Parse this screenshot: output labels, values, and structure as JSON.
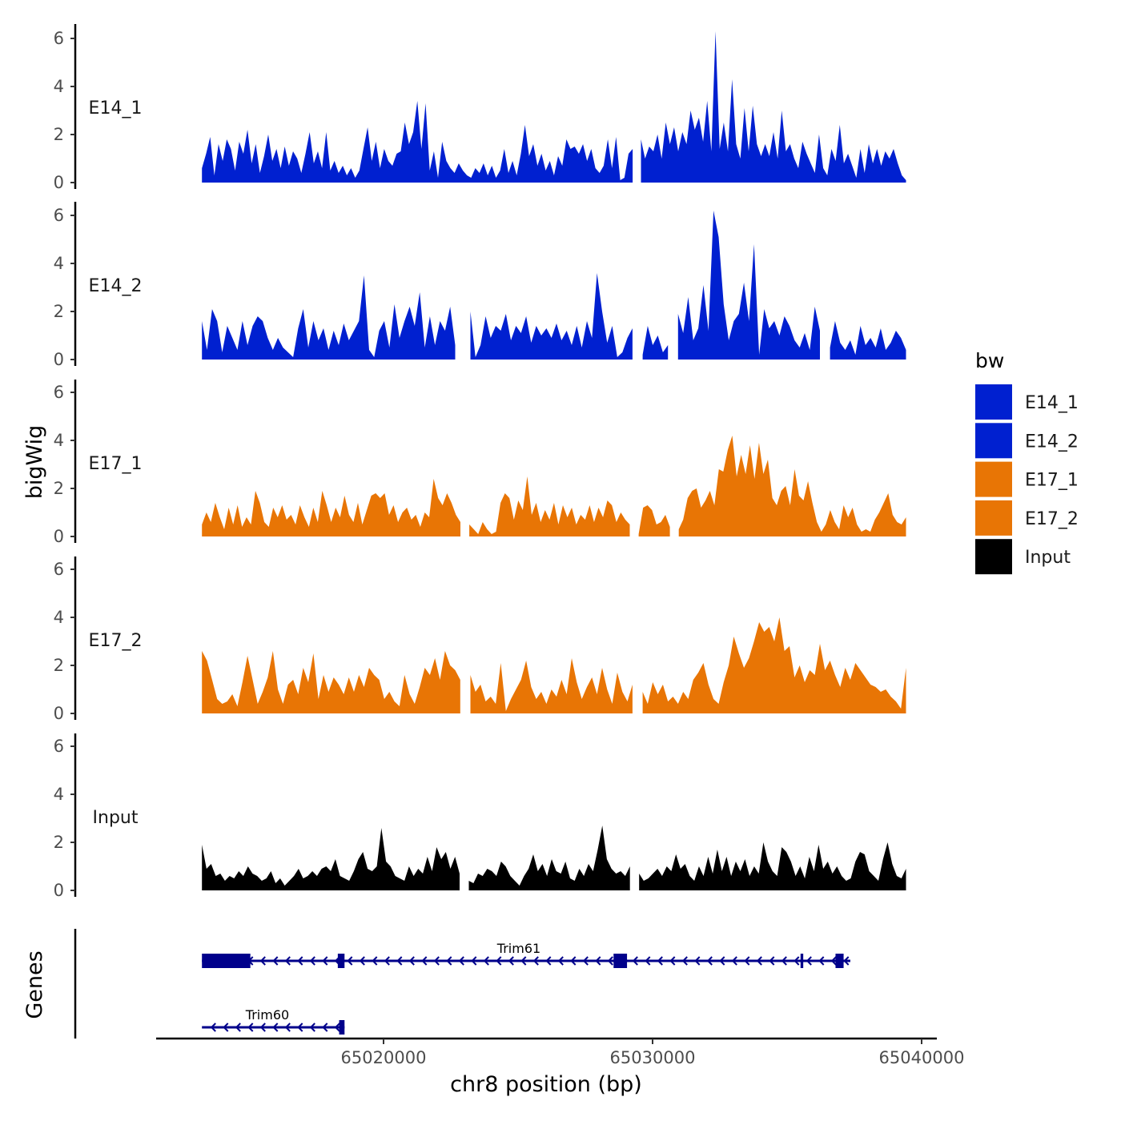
{
  "chart_data": {
    "type": "area",
    "chromosome": "chr8",
    "xlabel": "chr8 position (bp)",
    "ylabel": "bigWig",
    "genes_label": "Genes",
    "xlim": [
      65011500,
      65040500
    ],
    "ylim": [
      0,
      6.5
    ],
    "x_ticks": [
      65020000,
      65030000,
      65040000
    ],
    "x_tick_labels": [
      "65020000",
      "65030000",
      "65040000"
    ],
    "y_ticks": [
      0,
      2,
      4,
      6
    ],
    "y_tick_labels": [
      "0",
      "2",
      "4",
      "6"
    ],
    "legend": {
      "title": "bw",
      "position": "right",
      "entries": [
        {
          "label": "E14_1",
          "color": "#0020d0"
        },
        {
          "label": "E14_2",
          "color": "#0020d0"
        },
        {
          "label": "E17_1",
          "color": "#e87505"
        },
        {
          "label": "E17_2",
          "color": "#e87505"
        },
        {
          "label": "Input",
          "color": "#000000"
        }
      ]
    },
    "series": [
      {
        "name": "E14_1",
        "label": "E14_1",
        "color": "#0020d0",
        "x_start": 65013250,
        "x_end": 65039420,
        "gaps": [
          [
            65029300,
            65029450
          ]
        ],
        "values": [
          0.6,
          1.2,
          1.9,
          0.3,
          1.6,
          0.9,
          1.8,
          1.4,
          0.5,
          1.7,
          1.2,
          2.2,
          0.8,
          1.6,
          0.4,
          1.1,
          2.0,
          0.9,
          1.4,
          0.6,
          1.5,
          0.7,
          1.3,
          1.0,
          0.4,
          1.2,
          2.1,
          0.8,
          1.3,
          0.6,
          2.1,
          0.5,
          0.9,
          0.4,
          0.7,
          0.3,
          0.6,
          0.2,
          0.5,
          1.4,
          2.3,
          0.9,
          1.7,
          0.6,
          1.4,
          0.9,
          0.7,
          1.2,
          1.3,
          2.5,
          1.6,
          2.1,
          3.4,
          1.4,
          3.3,
          0.5,
          1.3,
          0.2,
          1.7,
          0.9,
          0.6,
          0.4,
          0.8,
          0.5,
          0.3,
          0.2,
          0.6,
          0.4,
          0.8,
          0.3,
          0.7,
          0.2,
          0.5,
          1.4,
          0.4,
          0.9,
          0.3,
          1.2,
          2.4,
          1.1,
          1.6,
          0.7,
          1.2,
          0.5,
          0.9,
          0.3,
          1.1,
          0.7,
          1.8,
          1.4,
          1.5,
          1.2,
          1.6,
          0.9,
          1.4,
          0.6,
          0.4,
          0.7,
          1.8,
          0.6,
          1.9,
          0.1,
          0.2,
          1.2,
          1.4,
          0.8,
          1.8,
          1.0,
          1.5,
          1.3,
          2.0,
          1.0,
          2.5,
          1.6,
          2.3,
          1.3,
          2.1,
          1.6,
          3.0,
          2.2,
          2.7,
          1.7,
          3.4,
          1.3,
          6.3,
          1.4,
          2.5,
          1.3,
          4.3,
          1.6,
          1.0,
          3.1,
          1.3,
          3.2,
          1.6,
          1.1,
          1.6,
          1.1,
          2.1,
          1.0,
          3.0,
          1.3,
          1.6,
          1.0,
          0.6,
          1.7,
          1.2,
          0.8,
          0.4,
          2.0,
          0.6,
          0.3,
          1.4,
          0.9,
          2.4,
          0.8,
          1.2,
          0.7,
          0.2,
          1.4,
          0.4,
          1.6,
          0.8,
          1.4,
          0.7,
          1.3,
          1.0,
          1.4,
          0.8,
          0.3,
          0.1
        ]
      },
      {
        "name": "E14_2",
        "label": "E14_2",
        "color": "#0020d0",
        "x_start": 65013250,
        "x_end": 65039420,
        "gaps": [
          [
            65022750,
            65023050
          ],
          [
            65029300,
            65029450
          ],
          [
            65030700,
            65030850
          ],
          [
            65036250,
            65036450
          ]
        ],
        "values": [
          1.6,
          0.4,
          2.1,
          1.6,
          0.3,
          1.4,
          0.9,
          0.4,
          1.6,
          0.6,
          1.4,
          1.8,
          1.6,
          0.9,
          0.4,
          0.9,
          0.5,
          0.3,
          0.1,
          1.3,
          2.1,
          0.5,
          1.6,
          0.8,
          1.3,
          0.4,
          1.2,
          0.6,
          1.5,
          0.8,
          1.2,
          1.6,
          3.5,
          0.4,
          0.1,
          1.2,
          1.6,
          0.5,
          2.3,
          0.9,
          1.6,
          2.2,
          1.4,
          2.8,
          0.5,
          1.8,
          0.6,
          1.6,
          1.2,
          2.2,
          0.6,
          1.3,
          0.8,
          2.0,
          0.1,
          0.6,
          1.8,
          0.9,
          1.4,
          1.2,
          1.9,
          0.8,
          1.4,
          1.1,
          1.8,
          0.7,
          1.4,
          1.0,
          1.3,
          0.9,
          1.5,
          0.8,
          1.2,
          0.6,
          1.4,
          0.5,
          1.6,
          0.9,
          3.6,
          2.0,
          0.7,
          1.4,
          0.1,
          0.3,
          0.9,
          1.3,
          0.5,
          0.2,
          1.4,
          0.6,
          1.0,
          0.3,
          0.6,
          1.6,
          1.9,
          1.1,
          2.6,
          0.8,
          1.3,
          3.1,
          1.2,
          6.2,
          5.1,
          2.3,
          0.8,
          1.6,
          1.9,
          3.2,
          1.6,
          4.8,
          0.2,
          2.1,
          1.3,
          1.6,
          1.0,
          1.8,
          1.4,
          0.8,
          0.5,
          1.1,
          0.4,
          2.2,
          1.2,
          0.3,
          0.5,
          1.6,
          0.7,
          0.4,
          0.8,
          0.2,
          1.4,
          0.6,
          0.9,
          0.5,
          1.3,
          0.4,
          0.7,
          1.2,
          0.9,
          0.4
        ]
      },
      {
        "name": "E17_1",
        "label": "E17_1",
        "color": "#e87505",
        "x_start": 65013250,
        "x_end": 65039420,
        "gaps": [
          [
            65022950,
            65023100
          ],
          [
            65029300,
            65029450
          ],
          [
            65030800,
            65030950
          ]
        ],
        "values": [
          0.5,
          1.0,
          0.6,
          1.4,
          0.8,
          0.3,
          1.2,
          0.5,
          1.3,
          0.4,
          0.8,
          0.5,
          1.9,
          1.4,
          0.6,
          0.4,
          1.2,
          0.8,
          1.3,
          0.7,
          0.9,
          0.5,
          1.3,
          0.8,
          0.4,
          1.2,
          0.6,
          1.9,
          1.3,
          0.6,
          1.2,
          0.8,
          1.7,
          0.9,
          0.6,
          1.4,
          0.5,
          1.1,
          1.7,
          1.8,
          1.6,
          1.8,
          0.9,
          1.3,
          0.6,
          1.0,
          1.2,
          0.7,
          0.9,
          0.4,
          1.0,
          0.8,
          2.4,
          1.6,
          1.3,
          1.8,
          1.4,
          0.9,
          0.6,
          0.2,
          0.5,
          0.3,
          0.1,
          0.6,
          0.3,
          0.1,
          0.2,
          1.4,
          1.8,
          1.6,
          0.7,
          1.5,
          1.1,
          2.5,
          0.9,
          1.4,
          0.6,
          1.1,
          0.7,
          1.4,
          0.5,
          1.3,
          0.8,
          1.2,
          0.5,
          0.9,
          0.7,
          1.3,
          0.6,
          1.2,
          0.8,
          1.5,
          1.3,
          0.6,
          1.0,
          0.7,
          0.5,
          0.3,
          0.1,
          1.2,
          1.3,
          1.1,
          0.5,
          0.6,
          0.9,
          0.4,
          0.2,
          0.3,
          0.7,
          1.6,
          1.9,
          2.0,
          1.2,
          1.5,
          1.9,
          1.3,
          2.8,
          2.7,
          3.6,
          4.2,
          2.5,
          3.4,
          2.6,
          3.8,
          2.4,
          3.9,
          2.6,
          3.2,
          1.6,
          1.3,
          1.9,
          2.1,
          1.3,
          2.8,
          1.7,
          1.5,
          2.3,
          1.4,
          0.6,
          0.2,
          0.5,
          1.1,
          0.6,
          0.3,
          1.3,
          0.8,
          1.2,
          0.5,
          0.2,
          0.3,
          0.2,
          0.7,
          1.0,
          1.4,
          1.8,
          0.9,
          0.6,
          0.5,
          0.8
        ]
      },
      {
        "name": "E17_2",
        "label": "E17_2",
        "color": "#e87505",
        "x_start": 65013250,
        "x_end": 65039420,
        "gaps": [
          [
            65022950,
            65023150
          ],
          [
            65029300,
            65029450
          ]
        ],
        "values": [
          2.6,
          2.2,
          1.4,
          0.6,
          0.4,
          0.5,
          0.8,
          0.3,
          1.3,
          2.4,
          1.4,
          0.4,
          0.9,
          1.5,
          2.6,
          1.0,
          0.4,
          1.2,
          1.4,
          0.8,
          1.9,
          1.3,
          2.5,
          0.6,
          1.6,
          0.9,
          1.5,
          1.2,
          0.8,
          1.5,
          0.9,
          1.6,
          1.1,
          1.9,
          1.6,
          1.4,
          0.6,
          0.9,
          0.5,
          0.3,
          1.6,
          0.8,
          0.4,
          1.1,
          1.9,
          1.6,
          2.3,
          1.4,
          2.6,
          2.0,
          1.8,
          1.4,
          2.1,
          1.6,
          0.9,
          1.2,
          0.5,
          0.7,
          0.4,
          2.1,
          0.1,
          0.6,
          1.0,
          1.4,
          2.2,
          1.1,
          0.6,
          0.9,
          0.4,
          1.0,
          0.7,
          1.4,
          0.8,
          2.3,
          1.3,
          0.6,
          1.1,
          1.5,
          0.8,
          1.9,
          1.0,
          0.4,
          1.7,
          0.9,
          0.5,
          1.2,
          0.6,
          0.9,
          0.4,
          1.3,
          0.8,
          1.2,
          0.5,
          0.7,
          0.4,
          0.9,
          0.6,
          1.4,
          1.7,
          2.1,
          1.2,
          0.6,
          0.4,
          1.3,
          2.0,
          3.2,
          2.5,
          1.9,
          2.3,
          3.0,
          3.8,
          3.4,
          3.6,
          3.0,
          4.0,
          2.6,
          2.8,
          1.5,
          2.0,
          1.3,
          1.8,
          1.6,
          2.9,
          1.8,
          2.2,
          1.6,
          1.1,
          1.9,
          1.4,
          2.1,
          1.8,
          1.5,
          1.2,
          1.1,
          0.9,
          1.0,
          0.7,
          0.5,
          0.2,
          1.9
        ]
      },
      {
        "name": "Input",
        "label": "Input",
        "color": "#000000",
        "x_start": 65013250,
        "x_end": 65039420,
        "gaps": [
          [
            65022950,
            65023150
          ],
          [
            65029300,
            65029450
          ]
        ],
        "values": [
          1.9,
          0.9,
          1.1,
          0.6,
          0.7,
          0.4,
          0.6,
          0.5,
          0.8,
          0.6,
          1.0,
          0.7,
          0.6,
          0.4,
          0.5,
          0.8,
          0.3,
          0.5,
          0.2,
          0.4,
          0.6,
          0.9,
          0.5,
          0.6,
          0.8,
          0.6,
          0.9,
          1.0,
          0.8,
          1.3,
          0.6,
          0.5,
          0.4,
          0.8,
          1.3,
          1.6,
          0.9,
          0.8,
          1.0,
          2.6,
          1.2,
          1.0,
          0.6,
          0.5,
          0.4,
          1.0,
          0.6,
          0.9,
          0.7,
          1.4,
          0.8,
          1.8,
          1.3,
          1.6,
          0.9,
          1.4,
          0.7,
          0.6,
          0.4,
          0.3,
          0.7,
          0.6,
          0.9,
          0.8,
          0.6,
          1.2,
          1.0,
          0.6,
          0.4,
          0.2,
          0.6,
          0.9,
          1.5,
          0.8,
          1.1,
          0.6,
          1.3,
          0.8,
          0.7,
          1.2,
          0.5,
          0.4,
          0.9,
          0.6,
          1.1,
          0.8,
          1.7,
          2.7,
          1.3,
          0.9,
          0.7,
          0.8,
          0.6,
          1.0,
          0.5,
          0.7,
          0.4,
          0.5,
          0.7,
          0.9,
          0.6,
          1.0,
          0.8,
          1.5,
          0.9,
          1.1,
          0.6,
          0.4,
          1.0,
          0.6,
          1.4,
          0.7,
          1.7,
          0.8,
          1.4,
          0.6,
          1.2,
          0.8,
          1.3,
          0.6,
          1.0,
          0.7,
          2.0,
          1.2,
          0.8,
          0.6,
          1.8,
          1.6,
          1.2,
          0.6,
          1.0,
          0.5,
          1.4,
          0.8,
          1.9,
          0.9,
          1.2,
          0.7,
          1.0,
          0.6,
          0.4,
          0.5,
          1.2,
          1.6,
          1.5,
          0.8,
          0.6,
          0.4,
          1.3,
          2.0,
          1.1,
          0.6,
          0.5,
          0.9
        ]
      }
    ],
    "genes": [
      {
        "name": "Trim61",
        "label": "Trim61",
        "strand": "-",
        "start": 65013250,
        "end": 65037350,
        "color": "#00008b",
        "exons": [
          [
            65013250,
            65015050
          ],
          [
            65018300,
            65018550
          ],
          [
            65028550,
            65029050
          ],
          [
            65035500,
            65035600
          ],
          [
            65036800,
            65037100
          ]
        ]
      },
      {
        "name": "Trim60",
        "label": "Trim60",
        "strand": "-",
        "start": 65013250,
        "end": 65018550,
        "color": "#00008b",
        "exons": [
          [
            65018350,
            65018550
          ]
        ]
      }
    ]
  }
}
